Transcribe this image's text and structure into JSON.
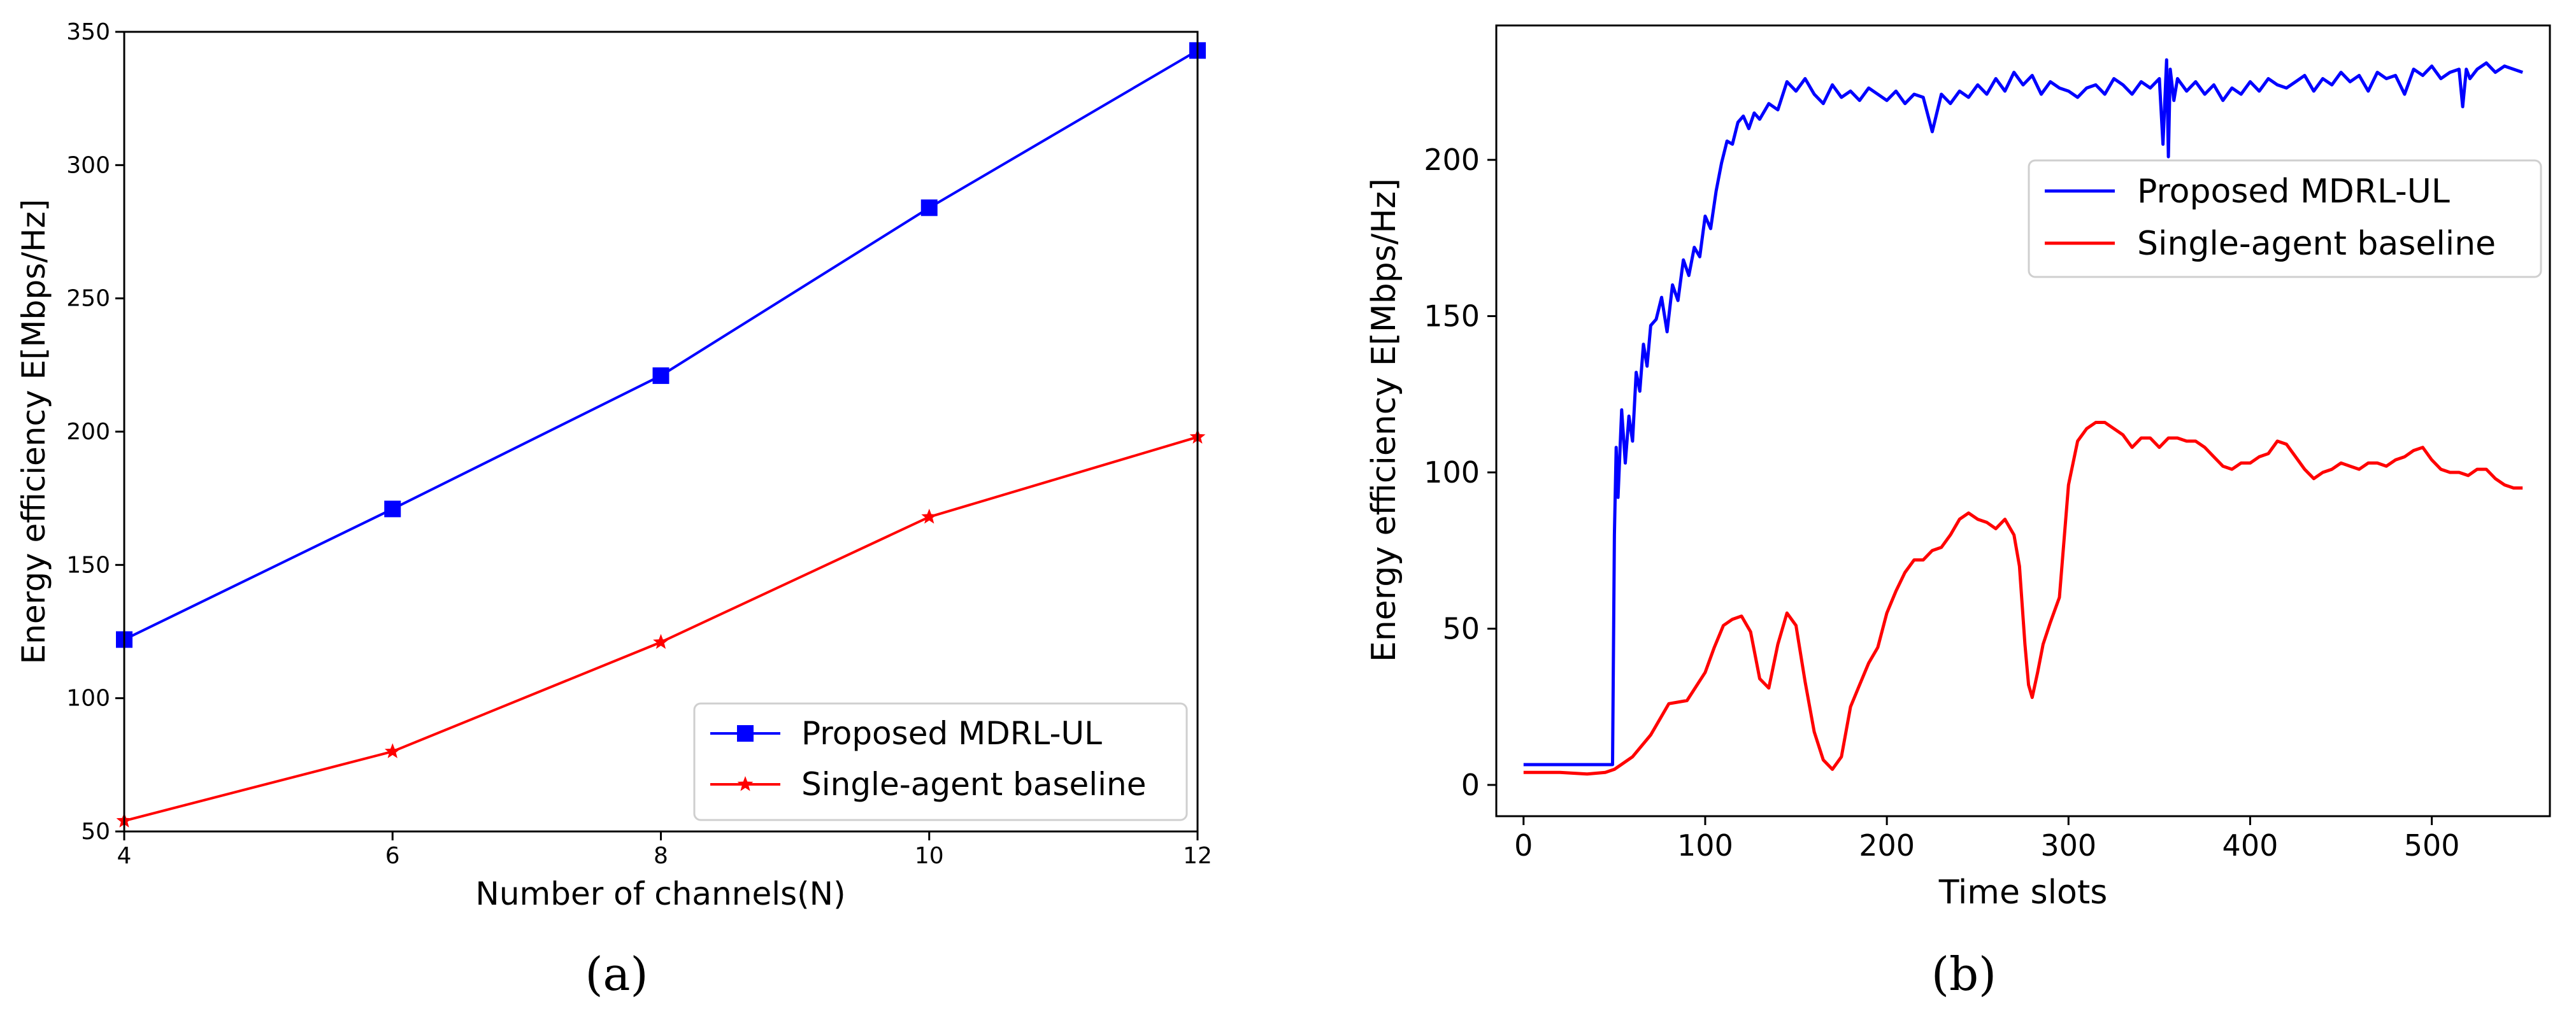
{
  "figure": {
    "panel_labels": [
      "(a)",
      "(b)"
    ]
  },
  "chart_data": [
    {
      "type": "line",
      "panel": "(a)",
      "xlabel": "Number of channels(N)",
      "ylabel": "Energy efficiency E[Mbps/Hz]",
      "xlim": [
        4,
        12
      ],
      "ylim": [
        50,
        350
      ],
      "x_ticks": [
        4,
        6,
        8,
        10,
        12
      ],
      "y_ticks": [
        50,
        100,
        150,
        200,
        250,
        300,
        350
      ],
      "x": [
        4,
        6,
        8,
        10,
        12
      ],
      "series": [
        {
          "name": "Proposed MDRL-UL",
          "color": "#0000ff",
          "marker": "square",
          "values": [
            122,
            171,
            221,
            284,
            343
          ]
        },
        {
          "name": "Single-agent baseline",
          "color": "#ff0000",
          "marker": "star",
          "values": [
            54,
            80,
            121,
            168,
            198
          ]
        }
      ],
      "legend": {
        "position": "lower-right",
        "entries": [
          "Proposed MDRL-UL",
          "Single-agent baseline"
        ]
      }
    },
    {
      "type": "line",
      "panel": "(b)",
      "xlabel": "Time slots",
      "ylabel": "Energy efficiency E[Mbps/Hz]",
      "xlim": [
        -15,
        565
      ],
      "ylim": [
        -10,
        243
      ],
      "x_ticks": [
        0,
        100,
        200,
        300,
        400,
        500
      ],
      "y_ticks": [
        0,
        50,
        100,
        150,
        200
      ],
      "series": [
        {
          "name": "Proposed MDRL-UL",
          "color": "#0000ff",
          "x": [
            0,
            20,
            40,
            49,
            50,
            51,
            52,
            54,
            56,
            58,
            60,
            62,
            64,
            66,
            68,
            70,
            73,
            76,
            79,
            82,
            85,
            88,
            91,
            94,
            97,
            100,
            103,
            106,
            109,
            112,
            115,
            118,
            121,
            124,
            127,
            130,
            135,
            140,
            145,
            150,
            155,
            160,
            165,
            170,
            175,
            180,
            185,
            190,
            195,
            200,
            205,
            210,
            215,
            220,
            225,
            230,
            235,
            240,
            245,
            250,
            255,
            260,
            265,
            270,
            275,
            280,
            285,
            290,
            295,
            300,
            305,
            310,
            315,
            320,
            325,
            330,
            335,
            340,
            345,
            350,
            352,
            354,
            355,
            356,
            358,
            360,
            365,
            370,
            375,
            380,
            385,
            390,
            395,
            400,
            405,
            410,
            415,
            420,
            425,
            430,
            435,
            440,
            445,
            450,
            455,
            460,
            465,
            470,
            475,
            480,
            485,
            490,
            495,
            500,
            505,
            510,
            515,
            517,
            519,
            521,
            525,
            530,
            535,
            540,
            545,
            550
          ],
          "values": [
            6.5,
            6.5,
            6.5,
            6.5,
            80,
            108,
            92,
            120,
            103,
            118,
            110,
            132,
            126,
            141,
            134,
            147,
            149,
            156,
            145,
            160,
            155,
            168,
            163,
            172,
            169,
            182,
            178,
            190,
            199,
            206,
            205,
            212,
            214,
            210,
            215,
            213,
            218,
            216,
            225,
            222,
            226,
            221,
            218,
            224,
            220,
            222,
            219,
            223,
            221,
            219,
            222,
            218,
            221,
            220,
            209,
            221,
            218,
            222,
            220,
            224,
            221,
            226,
            222,
            228,
            224,
            227,
            221,
            225,
            223,
            222,
            220,
            223,
            224,
            221,
            226,
            224,
            221,
            225,
            223,
            226,
            205,
            232,
            201,
            229,
            219,
            226,
            222,
            225,
            221,
            224,
            219,
            223,
            221,
            225,
            222,
            226,
            224,
            223,
            225,
            227,
            222,
            226,
            224,
            228,
            225,
            227,
            222,
            228,
            226,
            227,
            221,
            229,
            227,
            230,
            226,
            228,
            229,
            217,
            229,
            226,
            229,
            231,
            228,
            230,
            229,
            228
          ]
        },
        {
          "name": "Single-agent baseline",
          "color": "#ff0000",
          "x": [
            0,
            20,
            35,
            45,
            50,
            60,
            70,
            80,
            90,
            100,
            105,
            110,
            115,
            120,
            125,
            130,
            135,
            140,
            145,
            150,
            155,
            160,
            165,
            170,
            175,
            180,
            185,
            190,
            195,
            200,
            205,
            210,
            215,
            220,
            225,
            230,
            235,
            240,
            245,
            250,
            255,
            260,
            265,
            270,
            273,
            276,
            278,
            280,
            283,
            286,
            290,
            295,
            300,
            305,
            310,
            315,
            320,
            325,
            330,
            335,
            340,
            345,
            350,
            355,
            360,
            365,
            370,
            375,
            380,
            385,
            390,
            395,
            400,
            405,
            410,
            415,
            420,
            425,
            430,
            435,
            440,
            445,
            450,
            455,
            460,
            465,
            470,
            475,
            480,
            485,
            490,
            495,
            500,
            505,
            510,
            515,
            520,
            525,
            530,
            535,
            540,
            545,
            550
          ],
          "values": [
            4,
            4,
            3.5,
            4,
            5,
            9,
            16,
            26,
            27,
            36,
            44,
            51,
            53,
            54,
            49,
            34,
            31,
            45,
            55,
            51,
            33,
            17,
            8,
            5,
            9,
            25,
            32,
            39,
            44,
            55,
            62,
            68,
            72,
            72,
            75,
            76,
            80,
            85,
            87,
            85,
            84,
            82,
            85,
            80,
            70,
            45,
            32,
            28,
            36,
            45,
            52,
            60,
            96,
            110,
            114,
            116,
            116,
            114,
            112,
            108,
            111,
            111,
            108,
            111,
            111,
            110,
            110,
            108,
            105,
            102,
            101,
            103,
            103,
            105,
            106,
            110,
            109,
            105,
            101,
            98,
            100,
            101,
            103,
            102,
            101,
            103,
            103,
            102,
            104,
            105,
            107,
            108,
            104,
            101,
            100,
            100,
            99,
            101,
            101,
            98,
            96,
            95,
            95
          ]
        }
      ],
      "legend": {
        "position": "upper-right",
        "entries": [
          "Proposed MDRL-UL",
          "Single-agent baseline"
        ]
      }
    }
  ]
}
